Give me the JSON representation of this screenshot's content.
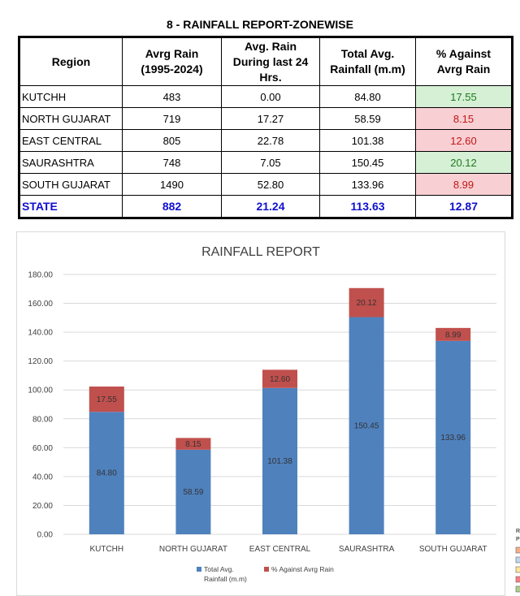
{
  "report_title": "8 - RAINFALL REPORT-ZONEWISE",
  "table": {
    "headers": [
      [
        "Region"
      ],
      [
        "Avrg Rain",
        "(1995-2024)"
      ],
      [
        "Avg. Rain",
        "During last 24",
        "Hrs."
      ],
      [
        "Total Avg.",
        "Rainfall (m.m)"
      ],
      [
        "% Against",
        "Avrg Rain"
      ]
    ],
    "rows": [
      {
        "region": "KUTCHH",
        "avrg": "483",
        "last24": "0.00",
        "total": "84.80",
        "pct": "17.55",
        "status": "pos"
      },
      {
        "region": "NORTH GUJARAT",
        "avrg": "719",
        "last24": "17.27",
        "total": "58.59",
        "pct": "8.15",
        "status": "neg"
      },
      {
        "region": "EAST CENTRAL",
        "avrg": "805",
        "last24": "22.78",
        "total": "101.38",
        "pct": "12.60",
        "status": "neg"
      },
      {
        "region": "SAURASHTRA",
        "avrg": "748",
        "last24": "7.05",
        "total": "150.45",
        "pct": "20.12",
        "status": "pos"
      },
      {
        "region": "SOUTH GUJARAT",
        "avrg": "1490",
        "last24": "52.80",
        "total": "133.96",
        "pct": "8.99",
        "status": "neg"
      }
    ],
    "state": {
      "region": "STATE",
      "avrg": "882",
      "last24": "21.24",
      "total": "113.63",
      "pct": "12.87"
    }
  },
  "colors": {
    "total": "#4f81bd",
    "pct": "#c0504d",
    "grid": "#d9d9d9",
    "side_marks": [
      "#f4b183",
      "#bdd7ee",
      "#ffe699",
      "#ff7c80",
      "#a9d18e"
    ]
  },
  "side_fragment": [
    "R",
    "P"
  ],
  "chart_data": {
    "type": "bar",
    "stacked": true,
    "title": "RAINFALL REPORT",
    "categories": [
      "KUTCHH",
      "NORTH GUJARAT",
      "EAST CENTRAL",
      "SAURASHTRA",
      "SOUTH GUJARAT"
    ],
    "series": [
      {
        "name": "Total Avg. Rainfall (m.m)",
        "values": [
          84.8,
          58.59,
          101.38,
          150.45,
          133.96
        ]
      },
      {
        "name": "% Against Avrg Rain",
        "values": [
          17.55,
          8.15,
          12.6,
          20.12,
          8.99
        ]
      }
    ],
    "ylim": [
      0,
      180
    ],
    "yticks": [
      "0.00",
      "20.00",
      "40.00",
      "60.00",
      "80.00",
      "100.00",
      "120.00",
      "140.00",
      "160.00",
      "180.00"
    ],
    "legend_labels": [
      [
        "Total Avg.",
        "Rainfall (m.m)"
      ],
      [
        "% Against Avrg Rain"
      ]
    ],
    "legend_position": "bottom",
    "grid": true
  }
}
